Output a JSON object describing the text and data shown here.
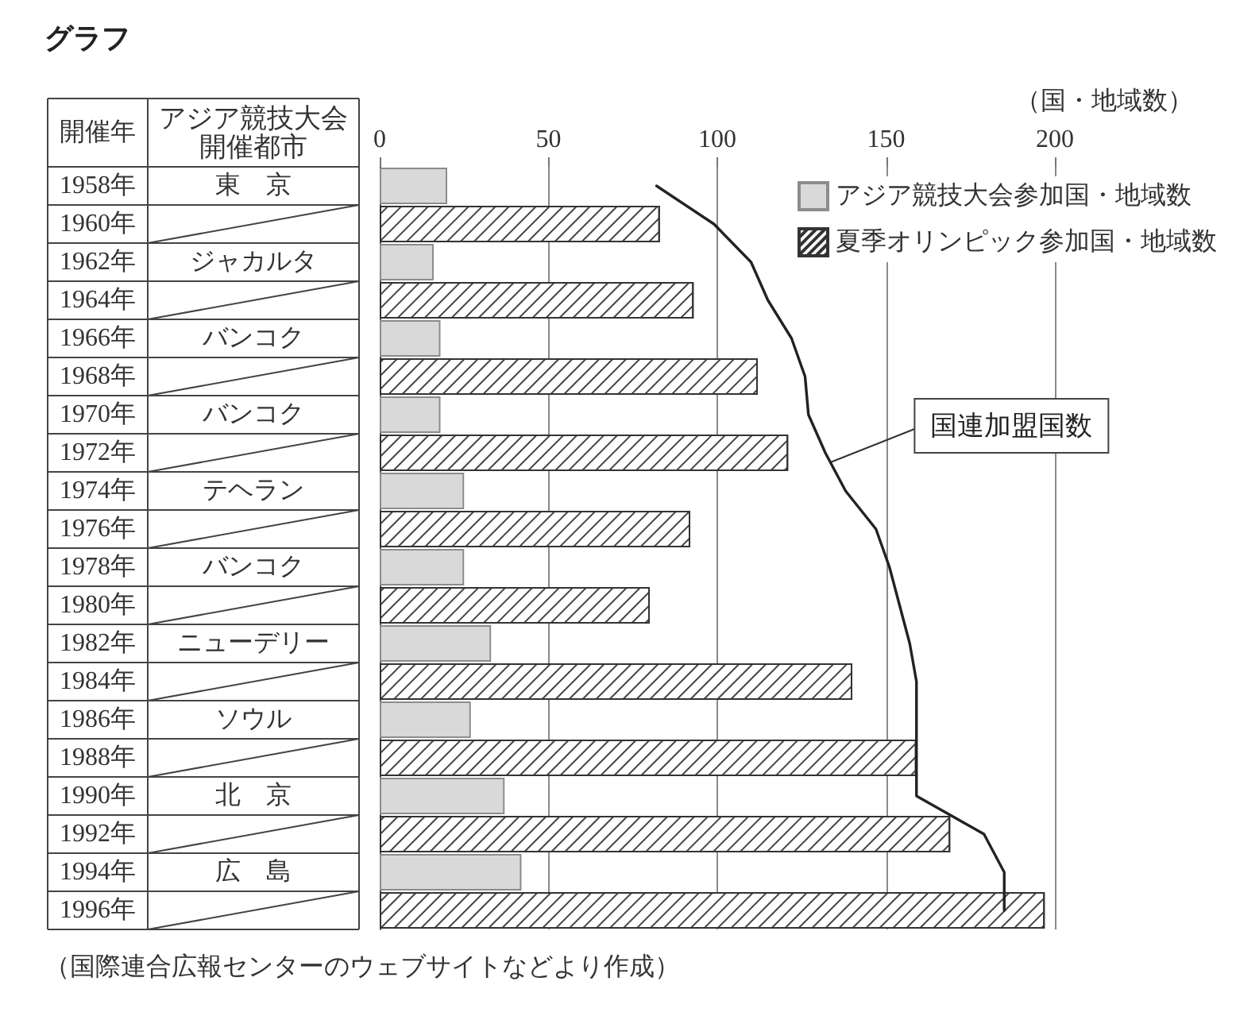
{
  "chart_data": {
    "type": "bar",
    "orientation": "horizontal",
    "title": "グラフ",
    "xlabel": "（国・地域数）",
    "ylabel": "アジア競技大会開催都市",
    "y2label": "開催年",
    "categories": [
      "東　京",
      null,
      "ジャカルタ",
      null,
      "バンコク",
      null,
      "バンコク",
      null,
      "テヘラン",
      null,
      "バンコク",
      null,
      "ニューデリー",
      null,
      "ソウル",
      null,
      "北　京",
      null,
      "広　島",
      null
    ],
    "y2_categories": [
      "1958年",
      "1960年",
      "1962年",
      "1964年",
      "1966年",
      "1968年",
      "1970年",
      "1972年",
      "1974年",
      "1976年",
      "1978年",
      "1980年",
      "1982年",
      "1984年",
      "1986年",
      "1988年",
      "1990年",
      "1992年",
      "1994年",
      "1996年"
    ],
    "series": [
      {
        "name": "アジア競技大会参加国・地域数",
        "color": "#d9d9d9",
        "values": [
          20,
          null,
          16,
          null,
          18,
          null,
          18,
          null,
          25,
          null,
          25,
          null,
          33,
          null,
          27,
          null,
          37,
          null,
          42,
          null
        ]
      },
      {
        "name": "夏季オリンピック参加国・地域数",
        "color": "#ffffff",
        "values": [
          null,
          83,
          null,
          93,
          null,
          112,
          null,
          121,
          null,
          92,
          null,
          80,
          null,
          140,
          null,
          159,
          null,
          169,
          null,
          197
        ]
      },
      {
        "name": "国連加盟国数",
        "type": "line",
        "color": "#222222",
        "values": [
          82,
          99,
          110,
          115,
          122,
          126,
          127,
          132,
          138,
          147,
          151,
          154,
          157,
          159,
          159,
          159,
          159,
          179,
          185,
          185
        ]
      }
    ],
    "xlim": [
      0,
      200
    ],
    "xticks": [
      0,
      50,
      100,
      150,
      200
    ],
    "grid": "x",
    "legend": "top right",
    "marker": "none",
    "line_style": "solid",
    "annotations": [
      "（国際連合広報センターのウェブサイトなどより作成）"
    ]
  }
}
